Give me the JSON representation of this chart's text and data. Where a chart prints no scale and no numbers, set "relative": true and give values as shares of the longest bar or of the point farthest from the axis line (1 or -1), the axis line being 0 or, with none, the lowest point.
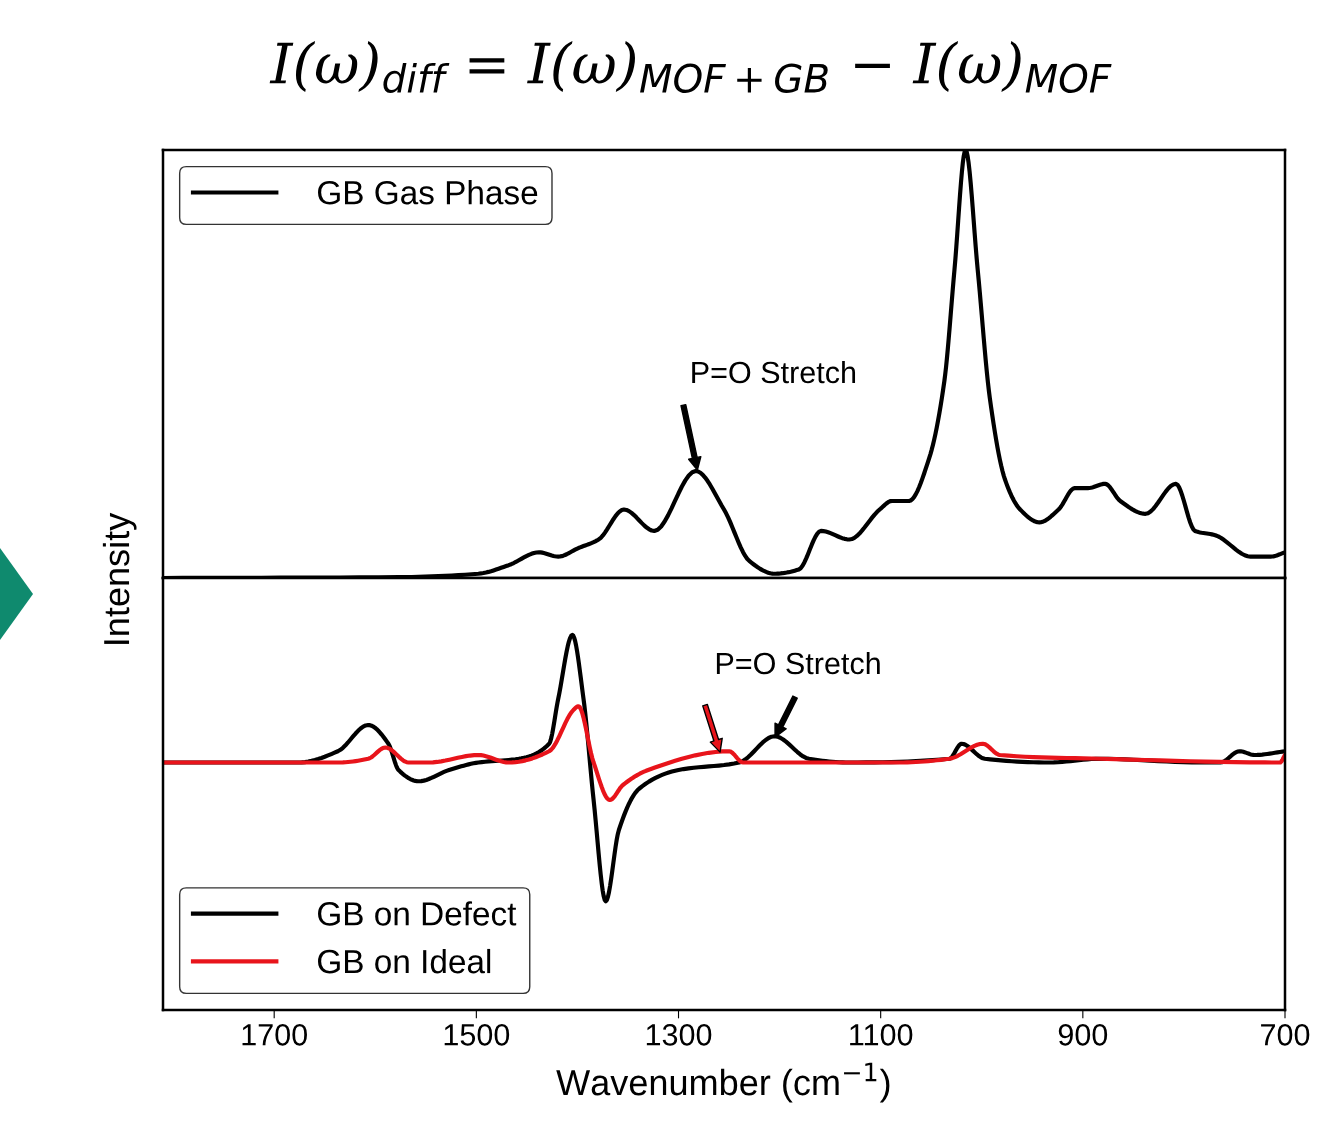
{
  "chart_data": [
    {
      "type": "line",
      "title": "I(ω)$_{diff}$ = I(ω)$_{MOF+GB}$ − I(ω)$_{MOF}$",
      "ylabel": "Intensity",
      "relative": true,
      "xlim": [
        1810,
        700
      ],
      "tick_labels": false,
      "legend": "top left",
      "grid": false,
      "series": [
        {
          "name": "GB Gas Phase",
          "color": "#000000",
          "x": [
            1810,
            1577,
            1498,
            1468,
            1438,
            1419,
            1399,
            1379,
            1354,
            1324,
            1283,
            1255,
            1230,
            1205,
            1181,
            1159,
            1131,
            1101,
            1089,
            1072,
            1052,
            1037,
            1027,
            1016,
            1004,
            992,
            977,
            962,
            943,
            924,
            908,
            895,
            878,
            863,
            838,
            808,
            789,
            769,
            734,
            714,
            700
          ],
          "values": [
            0,
            0.002,
            0.01,
            0.03,
            0.06,
            0.05,
            0.07,
            0.09,
            0.16,
            0.11,
            0.25,
            0.16,
            0.04,
            0.01,
            0.02,
            0.11,
            0.09,
            0.16,
            0.18,
            0.18,
            0.28,
            0.46,
            0.72,
            1.0,
            0.72,
            0.42,
            0.23,
            0.16,
            0.13,
            0.16,
            0.21,
            0.21,
            0.22,
            0.18,
            0.15,
            0.22,
            0.11,
            0.1,
            0.05,
            0.05,
            0.06
          ]
        }
      ],
      "annotations": [
        "P=O Stretch"
      ]
    },
    {
      "type": "line",
      "xlabel": "Wavenumber (cm$^{−1}$)",
      "relative": true,
      "xlim": [
        1810,
        700
      ],
      "xticks": [
        1700,
        1500,
        1300,
        1100,
        900,
        700
      ],
      "tick_labels": "x",
      "legend": "bottom left",
      "grid": false,
      "series": [
        {
          "name": "GB on Defect",
          "color": "#000000",
          "x": [
            1810,
            1676,
            1637,
            1607,
            1587,
            1577,
            1557,
            1527,
            1498,
            1458,
            1428,
            1419,
            1405,
            1394,
            1384,
            1372,
            1359,
            1339,
            1300,
            1240,
            1205,
            1171,
            1131,
            1032,
            1020,
            997,
            933,
            883,
            784,
            764,
            745,
            730,
            700
          ],
          "values": [
            0.66,
            0.66,
            0.69,
            0.76,
            0.71,
            0.64,
            0.61,
            0.64,
            0.66,
            0.67,
            0.71,
            0.83,
            1.0,
            0.83,
            0.56,
            0.29,
            0.48,
            0.59,
            0.64,
            0.66,
            0.73,
            0.67,
            0.66,
            0.67,
            0.71,
            0.67,
            0.66,
            0.67,
            0.66,
            0.66,
            0.69,
            0.68,
            0.69
          ]
        },
        {
          "name": "GB on Ideal",
          "color": "#e8141b",
          "x": [
            1810,
            1637,
            1607,
            1590,
            1567,
            1547,
            1498,
            1468,
            1428,
            1404,
            1399,
            1384,
            1368,
            1355,
            1330,
            1250,
            1236,
            1181,
            1082,
            1032,
            999,
            982,
            883,
            705,
            700
          ],
          "values": [
            0.66,
            0.66,
            0.67,
            0.7,
            0.66,
            0.66,
            0.68,
            0.66,
            0.69,
            0.8,
            0.81,
            0.66,
            0.56,
            0.6,
            0.64,
            0.69,
            0.66,
            0.66,
            0.66,
            0.67,
            0.71,
            0.68,
            0.67,
            0.66,
            0.68
          ]
        }
      ],
      "annotations": [
        "P=O Stretch"
      ]
    }
  ]
}
